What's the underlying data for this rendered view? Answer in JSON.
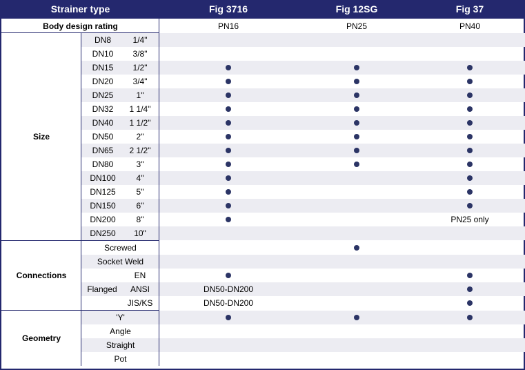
{
  "header": {
    "label": "Strainer type",
    "cols": [
      "Fig 3716",
      "Fig 12SG",
      "Fig 37"
    ]
  },
  "body_rating": {
    "label": "Body design rating",
    "values": [
      "PN16",
      "PN25",
      "PN40"
    ]
  },
  "size": {
    "label": "Size",
    "rows": [
      {
        "dn": "DN8",
        "inch": "1/4\"",
        "cells": [
          "",
          "",
          ""
        ]
      },
      {
        "dn": "DN10",
        "inch": "3/8\"",
        "cells": [
          "",
          "",
          ""
        ]
      },
      {
        "dn": "DN15",
        "inch": "1/2\"",
        "cells": [
          "dot",
          "dot",
          "dot"
        ]
      },
      {
        "dn": "DN20",
        "inch": "3/4\"",
        "cells": [
          "dot",
          "dot",
          "dot"
        ]
      },
      {
        "dn": "DN25",
        "inch": "1\"",
        "cells": [
          "dot",
          "dot",
          "dot"
        ]
      },
      {
        "dn": "DN32",
        "inch": "1 1/4\"",
        "cells": [
          "dot",
          "dot",
          "dot"
        ]
      },
      {
        "dn": "DN40",
        "inch": "1 1/2\"",
        "cells": [
          "dot",
          "dot",
          "dot"
        ]
      },
      {
        "dn": "DN50",
        "inch": "2\"",
        "cells": [
          "dot",
          "dot",
          "dot"
        ]
      },
      {
        "dn": "DN65",
        "inch": "2 1/2\"",
        "cells": [
          "dot",
          "dot",
          "dot"
        ]
      },
      {
        "dn": "DN80",
        "inch": "3\"",
        "cells": [
          "dot",
          "dot",
          "dot"
        ]
      },
      {
        "dn": "DN100",
        "inch": "4\"",
        "cells": [
          "dot",
          "",
          "dot"
        ]
      },
      {
        "dn": "DN125",
        "inch": "5\"",
        "cells": [
          "dot",
          "",
          "dot"
        ]
      },
      {
        "dn": "DN150",
        "inch": "6\"",
        "cells": [
          "dot",
          "",
          "dot"
        ]
      },
      {
        "dn": "DN200",
        "inch": "8\"",
        "cells": [
          "dot",
          "",
          "PN25 only"
        ]
      },
      {
        "dn": "DN250",
        "inch": "10\"",
        "cells": [
          "",
          "",
          ""
        ]
      }
    ]
  },
  "connections": {
    "label": "Connections",
    "flanged_label": "Flanged",
    "rows": [
      {
        "label": "Screwed",
        "cells": [
          "",
          "dot",
          ""
        ]
      },
      {
        "label": "Socket Weld",
        "cells": [
          "",
          "",
          ""
        ]
      },
      {
        "label": "EN",
        "cells": [
          "dot",
          "",
          "dot"
        ]
      },
      {
        "label": "ANSI",
        "cells": [
          "DN50-DN200",
          "",
          "dot"
        ]
      },
      {
        "label": "JIS/KS",
        "cells": [
          "DN50-DN200",
          "",
          "dot"
        ]
      }
    ]
  },
  "geometry": {
    "label": "Geometry",
    "rows": [
      {
        "label": "'Y'",
        "cells": [
          "dot",
          "dot",
          "dot"
        ]
      },
      {
        "label": "Angle",
        "cells": [
          "",
          "",
          ""
        ]
      },
      {
        "label": "Straight",
        "cells": [
          "",
          "",
          ""
        ]
      },
      {
        "label": "Pot",
        "cells": [
          "",
          "",
          ""
        ]
      }
    ]
  },
  "colors": {
    "header_bg": "#24286e",
    "row_grey": "#ececf2",
    "dot": "#2b3465"
  }
}
